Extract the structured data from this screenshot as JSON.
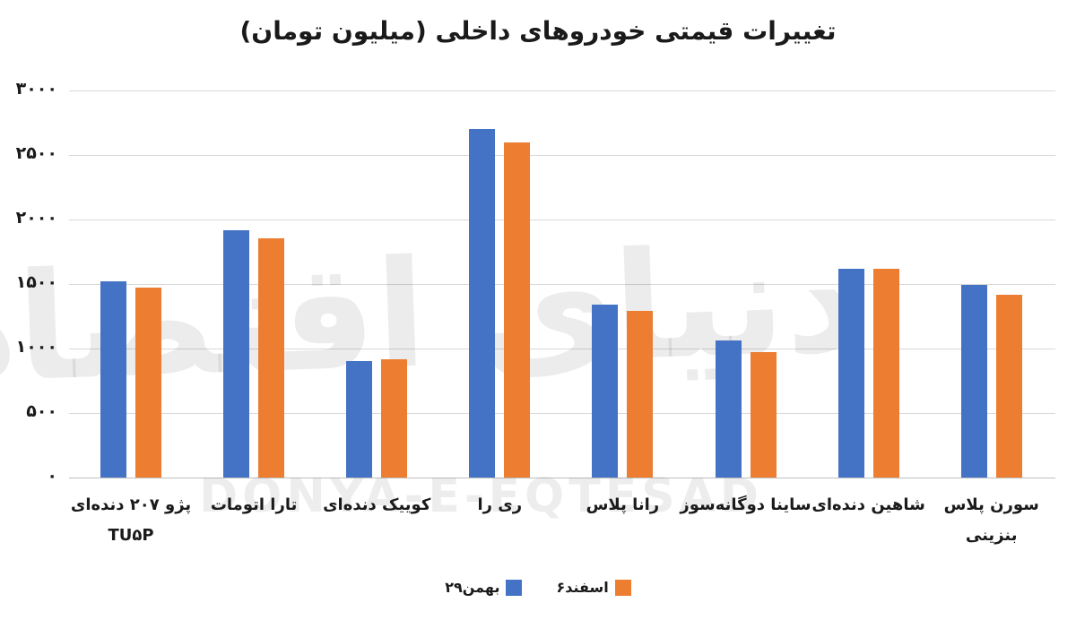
{
  "title": "تغییرات قیمتی خودروهای داخلی (میلیون تومان)",
  "watermark": {
    "persian": "دنیای اقتصاد",
    "latin": "DONYA-E-EQTESAD"
  },
  "colors": {
    "series_blue": "#4472C4",
    "series_orange": "#ED7D31",
    "gridline": "#D9D9D9",
    "axis_line": "#BFBFBF",
    "text": "#1A1A1A"
  },
  "y_axis": {
    "tick_labels": [
      "۳۰۰۰",
      "۲۵۰۰",
      "۲۰۰۰",
      "۱۵۰۰",
      "۱۰۰۰",
      "۵۰۰",
      "۰"
    ],
    "tick_values": [
      3000,
      2500,
      2000,
      1500,
      1000,
      500,
      0
    ]
  },
  "legend": {
    "items": [
      {
        "label": "۲۹بهمن",
        "color": "#4472C4"
      },
      {
        "label": "۶اسفند",
        "color": "#ED7D31"
      }
    ]
  },
  "chart_data": {
    "type": "bar",
    "title": "تغییرات قیمتی خودروهای داخلی (میلیون تومان)",
    "unit": "میلیون تومان",
    "categories": [
      "پژو ۲۰۷ دنده‌ای\nTU۵P",
      "تارا اتومات",
      "کوییک دنده‌ای",
      "ری را",
      "رانا پلاس",
      "ساینا دوگانه‌سوز",
      "شاهین دنده‌ای",
      "سورن پلاس\nبنزینی"
    ],
    "series": [
      {
        "name": "۲۹بهمن",
        "color": "#4472C4",
        "values": [
          1520,
          1920,
          900,
          2700,
          1340,
          1060,
          1620,
          1495
        ]
      },
      {
        "name": "۶اسفند",
        "color": "#ED7D31",
        "values": [
          1475,
          1855,
          920,
          2600,
          1290,
          970,
          1620,
          1415
        ]
      }
    ],
    "ylim": [
      0,
      3000
    ],
    "ytick_step": 500,
    "grid": true,
    "legend_position": "bottom"
  }
}
